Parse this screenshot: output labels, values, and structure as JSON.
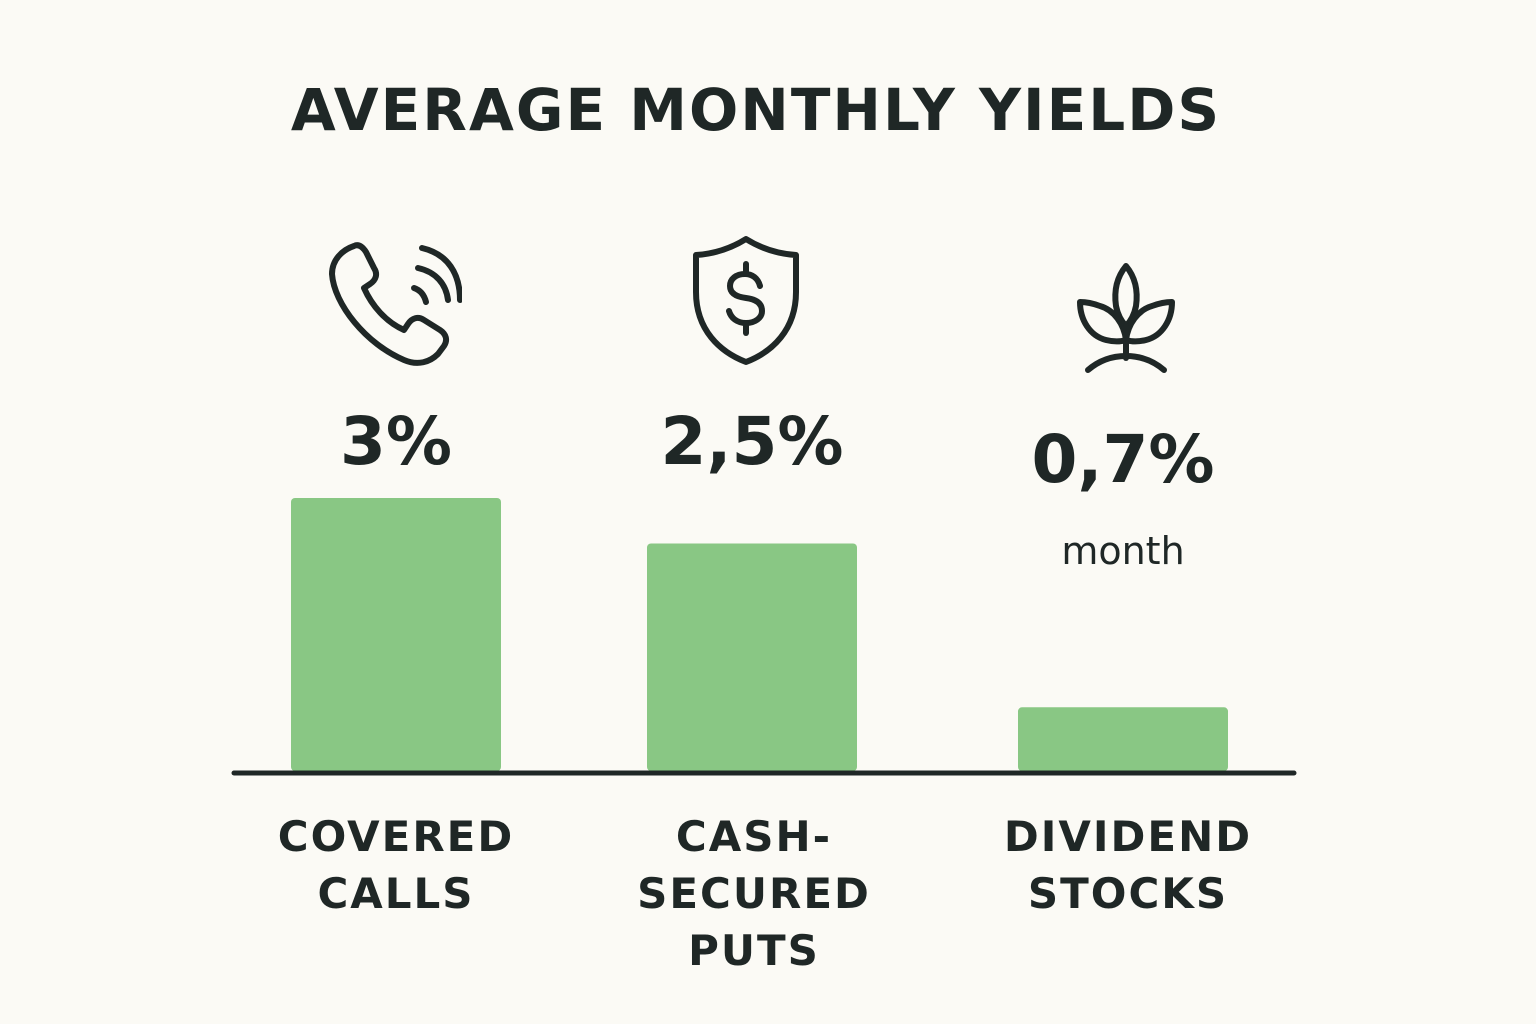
{
  "chart_data": {
    "type": "bar",
    "title": "AVERAGE MONTHLY YIELDS",
    "categories": [
      "COVERED\nCALLS",
      "CASH-\nSECURED\nPUTS",
      "DIVIDEND\nSTOCKS"
    ],
    "values": [
      3,
      2.5,
      0.7
    ],
    "value_labels": [
      "3%",
      "2,5%",
      "0,7%"
    ],
    "annotations": [
      {
        "category_index": 2,
        "text": "month"
      }
    ],
    "icons": [
      "phone-call-icon",
      "shield-dollar-icon",
      "sprout-icon"
    ],
    "xlabel": "",
    "ylabel": "",
    "ylim": [
      0,
      3.5
    ],
    "grid": false,
    "legend": "none"
  },
  "colors": {
    "bar": "#89c784",
    "text": "#1f2726",
    "background": "#fbfaf5",
    "baseline": "#1f2726"
  }
}
